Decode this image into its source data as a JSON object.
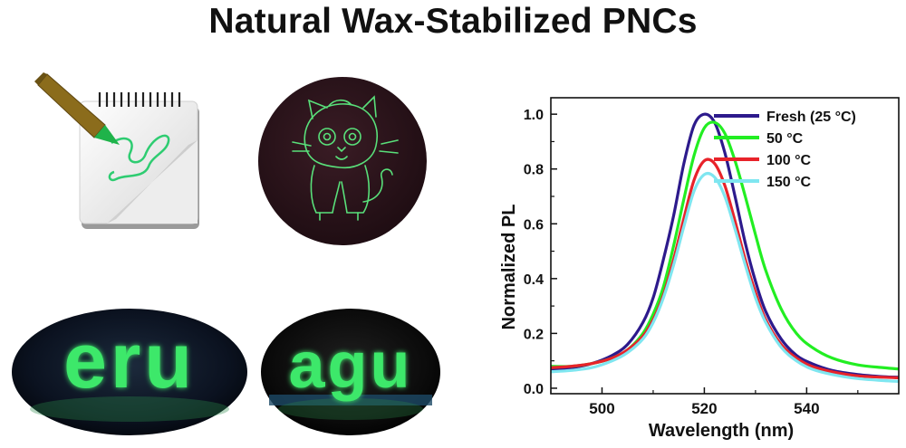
{
  "title": "Natural Wax-Stabilized PNCs",
  "colors": {
    "fluorescent_green": "#3ee86a",
    "dark_background": "#1f0f14",
    "pencil_body": "#8b6c1c"
  },
  "illustrations": {
    "notepad": {
      "icon": "pencil-drawing-on-notepad-icon"
    },
    "cat_disc": {
      "icon": "glowing-cat-drawing-icon"
    },
    "letters_left": {
      "text": "eru"
    },
    "letters_right": {
      "text": "agu"
    }
  },
  "chart_data": {
    "type": "line",
    "xlabel": "Wavelength (nm)",
    "ylabel": "Normalized PL",
    "xlim": [
      490,
      558
    ],
    "ylim": [
      -0.02,
      1.06
    ],
    "x_ticks": [
      500,
      520,
      540
    ],
    "y_ticks": [
      0.0,
      0.2,
      0.4,
      0.6,
      0.8,
      1.0
    ],
    "x_tick_labels": [
      "500",
      "520",
      "540"
    ],
    "y_tick_labels": [
      "0.0",
      "0.2",
      "0.4",
      "0.6",
      "0.8",
      "1.0"
    ],
    "legend_position": "top-right",
    "series": [
      {
        "name": "Fresh (25 °C)",
        "color": "#2d1a8c",
        "x": [
          490,
          494,
          498,
          502,
          505,
          508,
          510,
          512,
          514,
          516,
          518,
          520,
          522,
          524,
          526,
          528,
          530,
          532,
          535,
          538,
          541,
          545,
          550,
          555,
          558
        ],
        "y": [
          0.07,
          0.075,
          0.09,
          0.12,
          0.16,
          0.24,
          0.33,
          0.47,
          0.63,
          0.82,
          0.96,
          1.0,
          0.97,
          0.86,
          0.7,
          0.53,
          0.39,
          0.28,
          0.18,
          0.12,
          0.09,
          0.065,
          0.05,
          0.042,
          0.04
        ]
      },
      {
        "name": "50 °C",
        "color": "#22ee22",
        "x": [
          490,
          494,
          498,
          502,
          505,
          508,
          510,
          512,
          514,
          516,
          518,
          520,
          522,
          524,
          526,
          528,
          530,
          532,
          535,
          538,
          541,
          545,
          550,
          555,
          558
        ],
        "y": [
          0.08,
          0.08,
          0.09,
          0.11,
          0.14,
          0.2,
          0.27,
          0.37,
          0.52,
          0.69,
          0.85,
          0.95,
          0.97,
          0.93,
          0.83,
          0.7,
          0.56,
          0.43,
          0.29,
          0.2,
          0.15,
          0.11,
          0.085,
          0.075,
          0.07
        ]
      },
      {
        "name": "100 °C",
        "color": "#e8232a",
        "x": [
          490,
          494,
          498,
          502,
          505,
          508,
          510,
          512,
          514,
          516,
          518,
          520,
          522,
          524,
          526,
          528,
          530,
          532,
          535,
          538,
          541,
          545,
          550,
          555,
          558
        ],
        "y": [
          0.075,
          0.08,
          0.09,
          0.11,
          0.14,
          0.19,
          0.25,
          0.34,
          0.47,
          0.62,
          0.76,
          0.83,
          0.82,
          0.74,
          0.61,
          0.47,
          0.35,
          0.25,
          0.16,
          0.11,
          0.08,
          0.06,
          0.045,
          0.04,
          0.038
        ]
      },
      {
        "name": "150 °C",
        "color": "#7fe6f0",
        "x": [
          490,
          494,
          498,
          502,
          505,
          508,
          510,
          512,
          514,
          516,
          518,
          520,
          522,
          524,
          526,
          528,
          530,
          532,
          535,
          538,
          541,
          545,
          550,
          555,
          558
        ],
        "y": [
          0.06,
          0.065,
          0.075,
          0.1,
          0.13,
          0.18,
          0.24,
          0.33,
          0.45,
          0.59,
          0.72,
          0.78,
          0.77,
          0.7,
          0.58,
          0.45,
          0.33,
          0.24,
          0.15,
          0.1,
          0.07,
          0.05,
          0.035,
          0.028,
          0.025
        ]
      }
    ]
  }
}
